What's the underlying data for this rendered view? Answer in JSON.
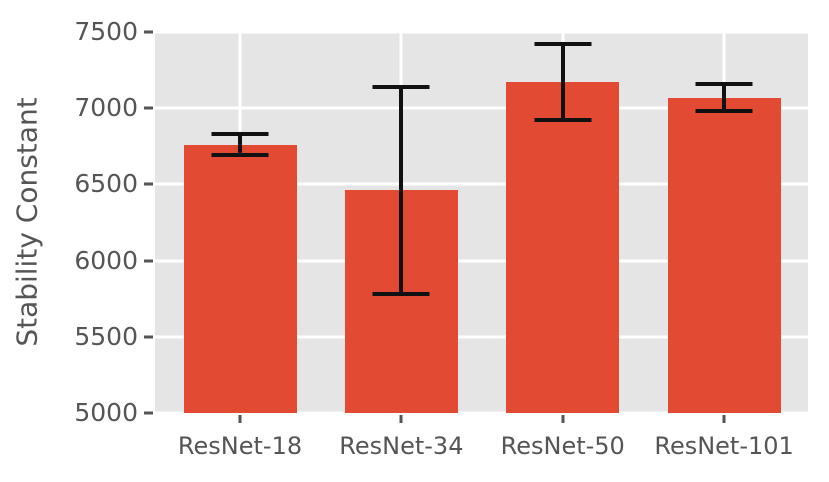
{
  "chart_data": {
    "type": "bar",
    "title": "",
    "xlabel": "",
    "ylabel": "Stability Constant",
    "categories": [
      "ResNet-18",
      "ResNet-34",
      "ResNet-50",
      "ResNet-101"
    ],
    "values": [
      6760,
      6460,
      7170,
      7070
    ],
    "error_low": [
      6690,
      5780,
      6920,
      6980
    ],
    "error_high": [
      6830,
      7140,
      7420,
      7160
    ],
    "ylim": [
      5000,
      7500
    ],
    "yticks": [
      5000,
      5500,
      6000,
      6500,
      7000,
      7500
    ],
    "grid": "both",
    "legend": "none",
    "colors": {
      "bar": "#E24A33",
      "plot_background": "#E5E5E5",
      "gridline": "#FFFFFF",
      "error_bar": "#111111",
      "text": "#555555",
      "tick": "#555555"
    }
  }
}
